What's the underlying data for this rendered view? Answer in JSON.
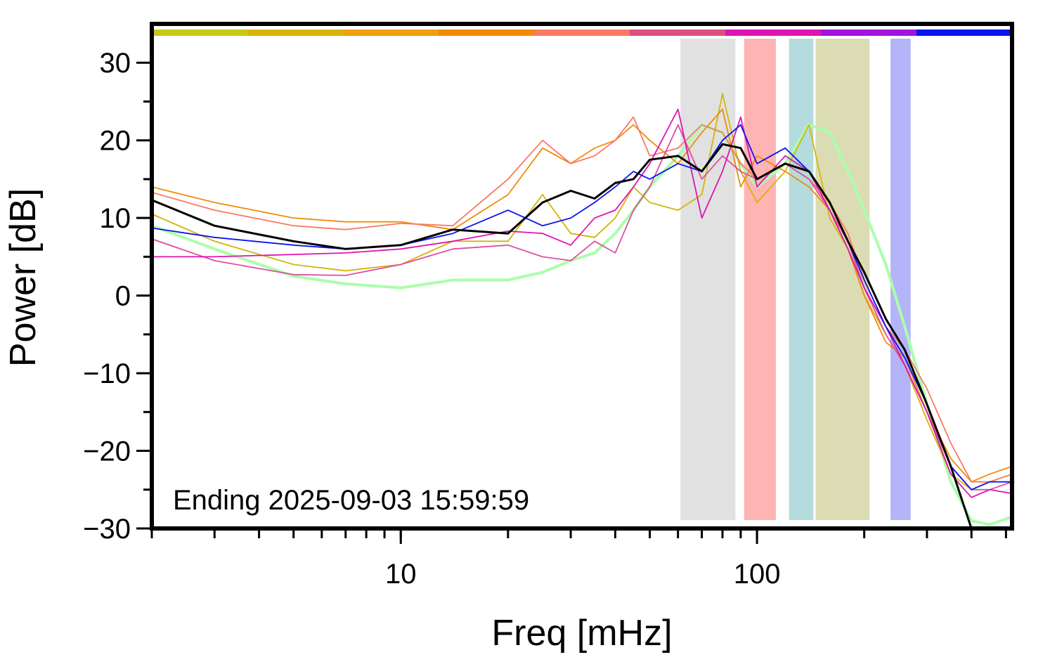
{
  "chart_data": {
    "type": "line",
    "xlabel": "Freq [mHz]",
    "ylabel": "Power [dB]",
    "annotation": "Ending 2025-09-03 15:59:59",
    "xscale": "log",
    "xlim": [
      2,
      520
    ],
    "ylim": [
      -30,
      35
    ],
    "xticks": [
      10,
      100
    ],
    "yticks": [
      {
        "value": -30,
        "label": "−30"
      },
      {
        "value": -20,
        "label": "−20"
      },
      {
        "value": -10,
        "label": "−10"
      },
      0,
      10,
      20,
      30
    ],
    "color_bar": [
      "#c8c814",
      "#d8b40a",
      "#eca012",
      "#f08c0a",
      "#fa7864",
      "#dc5080",
      "#dc14b4",
      "#a014dc",
      "#0a14f0"
    ],
    "bands": [
      {
        "x0": 61,
        "x1": 87,
        "color": "#e1e1e1"
      },
      {
        "x0": 92,
        "x1": 113,
        "color": "#ffb4b4"
      },
      {
        "x0": 123,
        "x1": 144,
        "color": "#b4dcdc"
      },
      {
        "x0": 146,
        "x1": 207,
        "color": "#dcdcb4"
      },
      {
        "x0": 237,
        "x1": 270,
        "color": "#b4b4f8"
      }
    ],
    "x": [
      2,
      3,
      5,
      7,
      10,
      14,
      20,
      25,
      30,
      35,
      40,
      45,
      50,
      60,
      70,
      80,
      90,
      100,
      120,
      140,
      160,
      180,
      200,
      230,
      260,
      300,
      350,
      400,
      450,
      520
    ],
    "series": [
      {
        "color": "#aaffaa",
        "width": 4,
        "values": [
          9,
          6,
          2.5,
          1.5,
          1,
          2,
          2,
          3,
          4.5,
          5.5,
          8,
          11,
          14,
          18,
          22,
          21,
          17,
          14,
          17,
          22,
          21,
          16,
          11,
          4,
          -4,
          -14,
          -24,
          -29,
          -29.5,
          -28.5
        ]
      },
      {
        "color": "#d4b40a",
        "width": 1.8,
        "values": [
          10.5,
          7,
          4,
          3.2,
          4,
          7,
          7,
          13,
          8,
          7.5,
          10,
          14,
          12,
          11,
          13,
          26,
          16,
          12,
          16,
          22,
          10,
          6,
          0,
          -5,
          -9,
          -16,
          -23,
          -25,
          -24,
          -23
        ]
      },
      {
        "color": "#f08c0a",
        "width": 1.8,
        "values": [
          14,
          12,
          10,
          9.5,
          9.5,
          8.5,
          13,
          19,
          17,
          19,
          20,
          22,
          20,
          17,
          21,
          24,
          14,
          18,
          16,
          14,
          11,
          6,
          0,
          -6,
          -8,
          -15,
          -21,
          -24,
          -23,
          -22
        ]
      },
      {
        "color": "#fa7864",
        "width": 1.8,
        "values": [
          13.3,
          11,
          9,
          8.5,
          9.3,
          9,
          15,
          20,
          17,
          18,
          20,
          23,
          18,
          19,
          22,
          21,
          17,
          15,
          17,
          15,
          12,
          8,
          2,
          -4,
          -7,
          -12,
          -19,
          -24,
          -24,
          -23
        ]
      },
      {
        "color": "#dc50a0",
        "width": 1.8,
        "values": [
          7.3,
          4.5,
          2.7,
          2.6,
          4,
          6,
          6.5,
          5,
          4.5,
          7,
          5.5,
          11,
          14,
          22,
          15,
          18,
          16,
          15,
          17,
          15,
          11,
          7,
          1,
          -5,
          -9,
          -15,
          -22,
          -25,
          -25,
          -24
        ]
      },
      {
        "color": "#dc14b4",
        "width": 1.8,
        "values": [
          5,
          5,
          5.3,
          5.5,
          6,
          7,
          8.3,
          8,
          6.5,
          10,
          11,
          14,
          17,
          24,
          10,
          16,
          23,
          14,
          18,
          16,
          11,
          6,
          1,
          -4,
          -9,
          -15,
          -23,
          -26,
          -25,
          -25.5
        ]
      },
      {
        "color": "#0a14f0",
        "width": 1.8,
        "values": [
          8.7,
          7.5,
          6.5,
          6,
          6.5,
          8,
          11,
          9,
          10,
          12,
          14,
          16,
          15,
          17,
          16,
          20,
          22,
          17,
          19,
          16,
          12,
          7,
          2,
          -4,
          -8,
          -14,
          -22,
          -25,
          -24,
          -24
        ]
      },
      {
        "color": "#000000",
        "width": 3,
        "values": [
          12.3,
          9,
          7,
          6,
          6.5,
          8.5,
          8,
          12,
          13.5,
          12.5,
          14.5,
          15,
          17.5,
          18,
          16,
          19.5,
          19,
          15,
          17,
          16,
          12,
          7,
          3,
          -3,
          -7,
          -14,
          -22,
          -30,
          null,
          null
        ]
      }
    ]
  }
}
